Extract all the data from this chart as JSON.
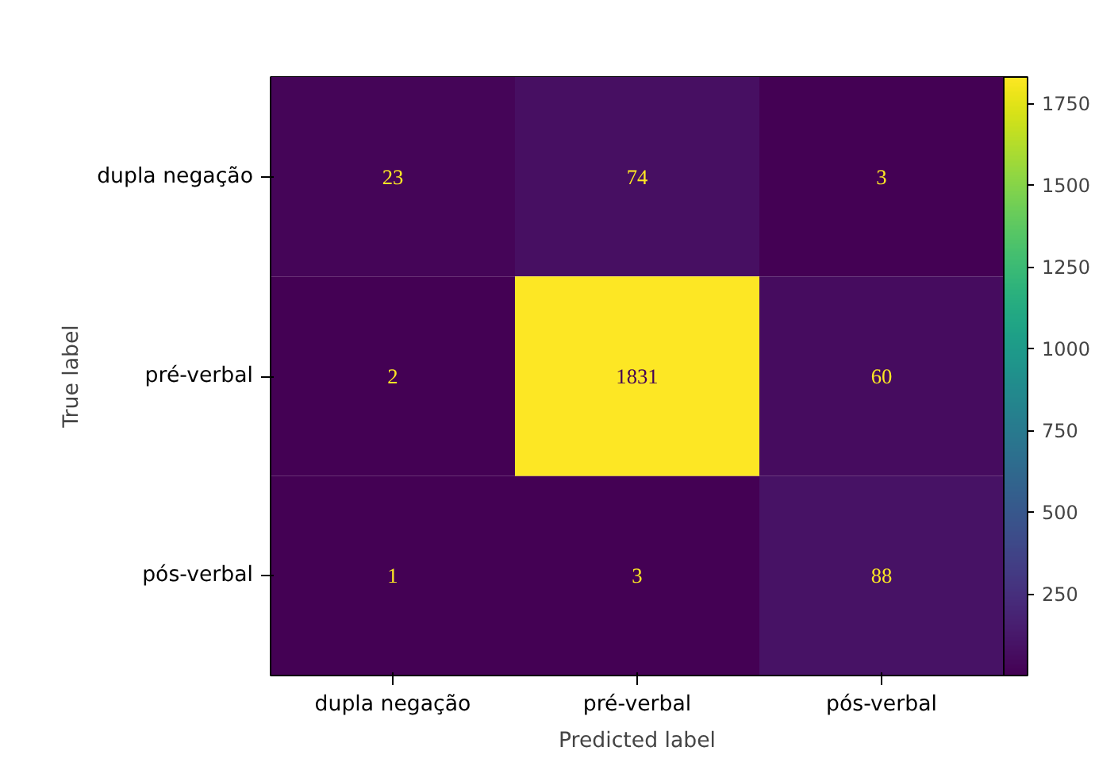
{
  "chart_data": {
    "type": "heatmap",
    "xlabel": "Predicted label",
    "ylabel": "True label",
    "categories": [
      "dupla negação",
      "pré-verbal",
      "pós-verbal"
    ],
    "y_categories": [
      "dupla negação",
      "pré-verbal",
      "pós-verbal"
    ],
    "cells": [
      [
        23,
        74,
        3
      ],
      [
        2,
        1831,
        60
      ],
      [
        1,
        3,
        88
      ]
    ],
    "clim": [
      1,
      1831
    ],
    "cticks": [
      250,
      500,
      750,
      1000,
      1250,
      1500,
      1750
    ],
    "data_labels": true
  }
}
